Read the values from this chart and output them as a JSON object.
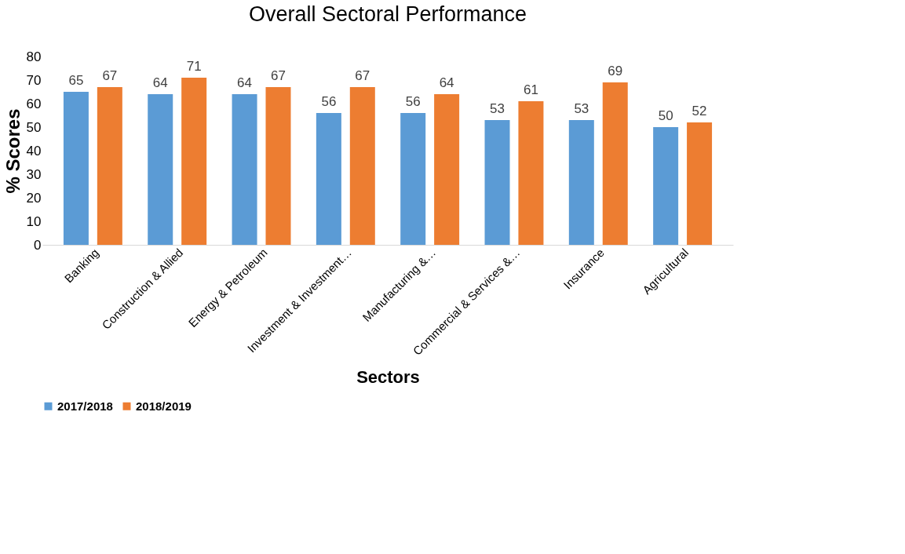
{
  "chart_data": {
    "type": "bar",
    "title": "Overall Sectoral Performance",
    "xlabel": "Sectors",
    "ylabel": "% Scores",
    "categories": [
      "Banking",
      "Construction & Allied",
      "Energy & Petroleum",
      "Investment & Investment…",
      "Manufacturing &…",
      "Commercial & Services &…",
      "Insurance",
      "Agricultural"
    ],
    "series": [
      {
        "name": "2017/2018",
        "color": "#5b9bd5",
        "values": [
          65,
          64,
          64,
          56,
          56,
          53,
          53,
          50
        ]
      },
      {
        "name": "2018/2019",
        "color": "#ed7d31",
        "values": [
          67,
          71,
          67,
          67,
          64,
          61,
          69,
          52
        ]
      }
    ],
    "ylim": [
      0,
      80
    ],
    "yticks": [
      0,
      10,
      20,
      30,
      40,
      50,
      60,
      70,
      80
    ],
    "grid": false,
    "legend": "bottom",
    "data_labels": true
  }
}
